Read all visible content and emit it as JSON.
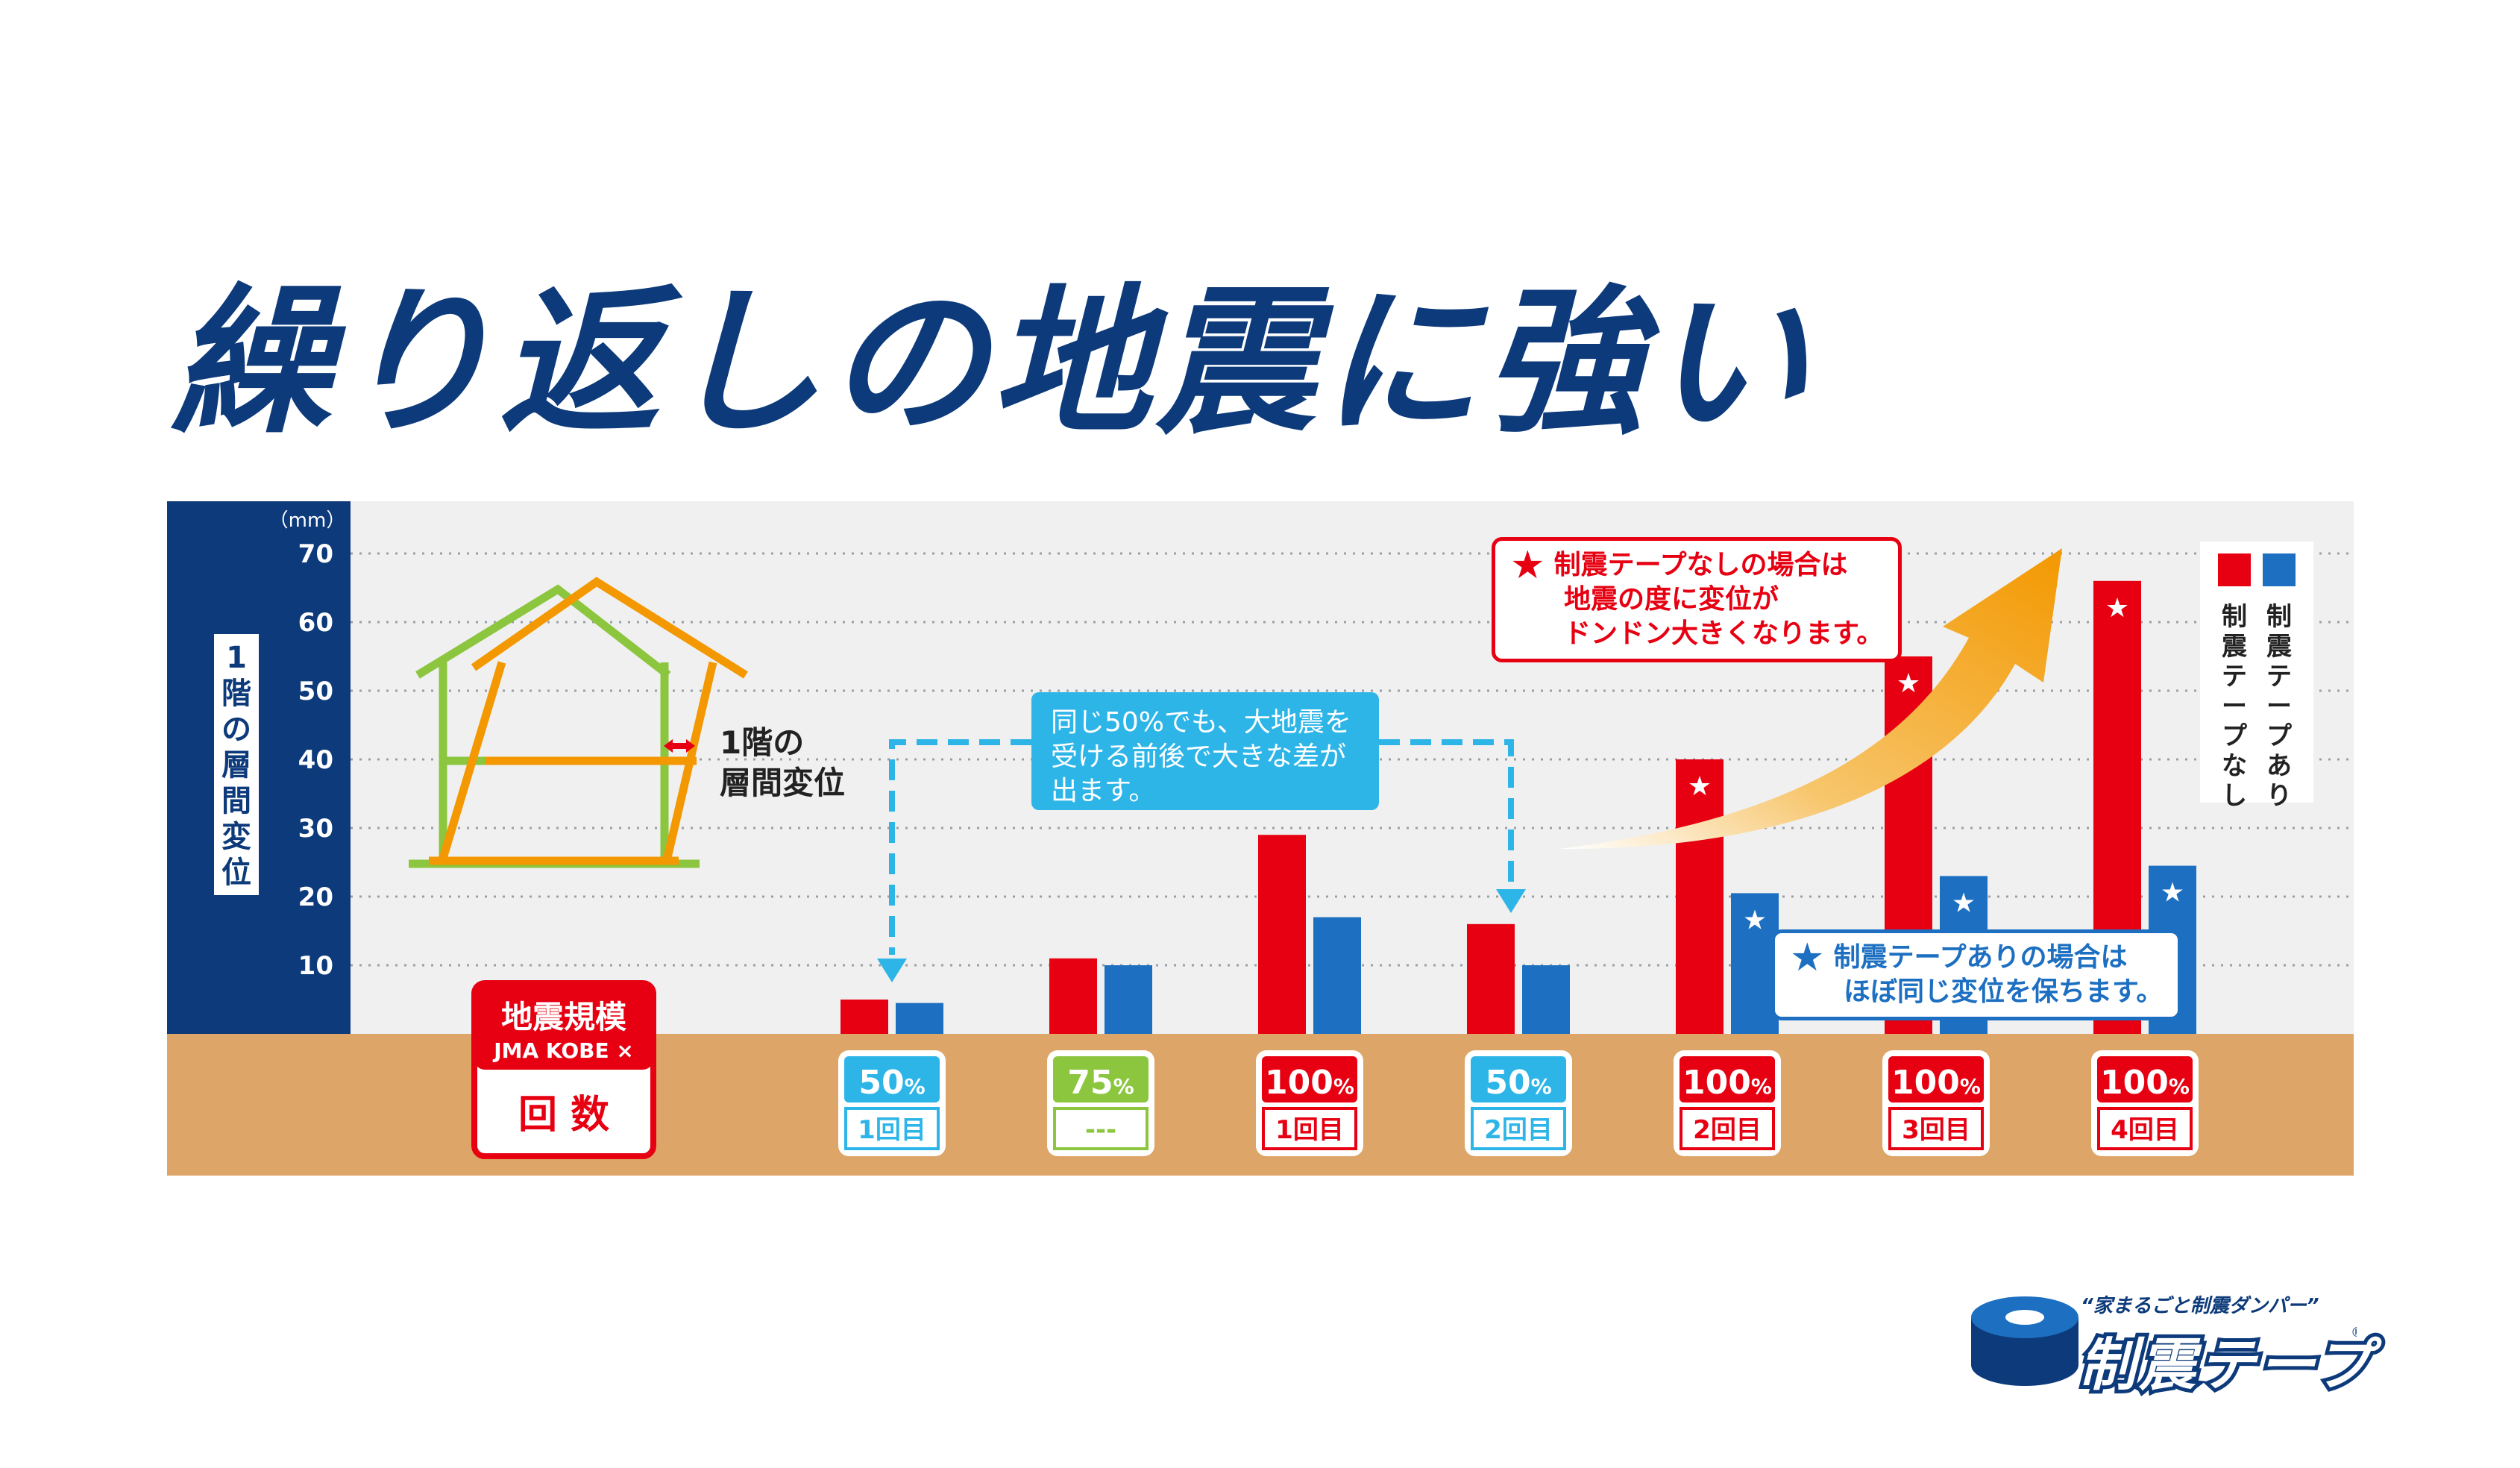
{
  "page_title": "繰り返しの地震に強い",
  "colors": {
    "navy": "#0d3a7a",
    "red": "#e60012",
    "blue": "#1d6fc1",
    "sky": "#2eb5e8",
    "green": "#8cc63f",
    "orange": "#f39800",
    "ground": "#dda567",
    "panel": "#f0f0f0"
  },
  "chart_data": {
    "type": "bar",
    "y_unit": "（mm）",
    "y_ticks": [
      "10",
      "20",
      "30",
      "40",
      "50",
      "60",
      "70"
    ],
    "ylim": [
      0,
      70
    ],
    "ylabel": "1階の層間変位",
    "grid": true,
    "legend": [
      {
        "name": "制震テープなし",
        "color": "#e60012"
      },
      {
        "name": "制震テープあり",
        "color": "#1d6fc1"
      }
    ],
    "legend_position": "top-right",
    "category_header": {
      "line1": "地震規模",
      "line2": "JMA KOBE ×",
      "line3": "回 数"
    },
    "categories": [
      {
        "scale": "50",
        "pct": "%",
        "count": "1回目",
        "color": "#2eb5e8"
      },
      {
        "scale": "75",
        "pct": "%",
        "count": "---",
        "color": "#8cc63f"
      },
      {
        "scale": "100",
        "pct": "%",
        "count": "1回目",
        "color": "#e60012"
      },
      {
        "scale": "50",
        "pct": "%",
        "count": "2回目",
        "color": "#2eb5e8"
      },
      {
        "scale": "100",
        "pct": "%",
        "count": "2回目",
        "color": "#e60012"
      },
      {
        "scale": "100",
        "pct": "%",
        "count": "3回目",
        "color": "#e60012"
      },
      {
        "scale": "100",
        "pct": "%",
        "count": "4回目",
        "color": "#e60012"
      }
    ],
    "series": [
      {
        "name": "制震テープなし",
        "values": [
          5,
          11,
          29,
          16,
          40,
          55,
          66
        ],
        "starred": [
          false,
          false,
          false,
          false,
          true,
          true,
          true
        ]
      },
      {
        "name": "制震テープあり",
        "values": [
          4.5,
          10,
          17,
          10,
          20.5,
          23,
          24.5
        ],
        "starred": [
          false,
          false,
          false,
          false,
          true,
          true,
          true
        ]
      }
    ],
    "annotations": {
      "house_label": [
        "1階の",
        "層間変位"
      ],
      "note": [
        "同じ50%でも、大地震を",
        "受ける前後で大きな差が",
        "出ます。"
      ],
      "red_callout": {
        "star": "★",
        "lines": [
          "制震テープなしの場合は",
          "地震の度に変位が",
          "ドンドン大きくなります。"
        ]
      },
      "blue_callout": {
        "star": "★",
        "lines": [
          "制震テープありの場合は",
          "ほぼ同じ変位を保ちます。"
        ]
      }
    }
  },
  "logo": {
    "tagline": "“家まるごと制震ダンパー”",
    "name": "制震テープ",
    "mark": "®"
  }
}
